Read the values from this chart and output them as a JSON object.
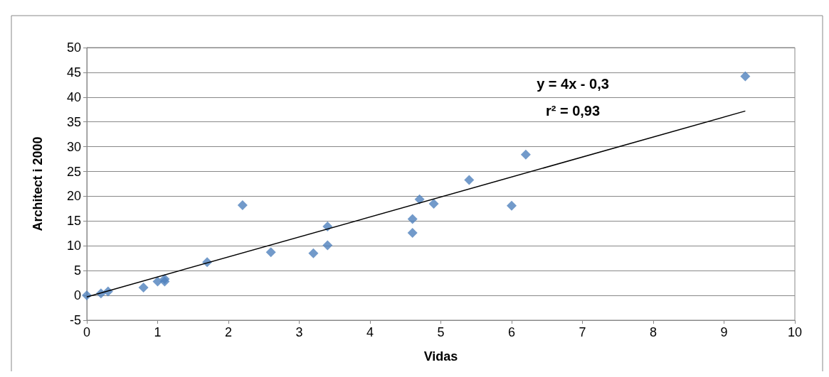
{
  "chart_data": {
    "type": "scatter",
    "xlabel": "Vidas",
    "ylabel": "Architect i 2000",
    "xlim": [
      0,
      10
    ],
    "xticks": [
      0,
      1,
      2,
      3,
      4,
      5,
      6,
      7,
      8,
      9,
      10
    ],
    "ylim": [
      -5,
      50
    ],
    "yticks": [
      -5,
      0,
      5,
      10,
      15,
      20,
      25,
      30,
      35,
      40,
      45,
      50
    ],
    "grid": "y",
    "marker": "diamond",
    "annotations": [
      "y = 4x - 0,3",
      "r² = 0,93"
    ],
    "series": [
      {
        "color": "#4f81bd",
        "x": [
          0,
          0.2,
          0.3,
          0.8,
          1.0,
          1.1,
          1.1,
          1.7,
          2.2,
          2.6,
          3.2,
          3.4,
          3.4,
          4.6,
          4.6,
          4.7,
          4.9,
          5.4,
          6.0,
          6.2,
          9.3
        ],
        "values": [
          0,
          0.4,
          0.8,
          1.6,
          2.8,
          2.8,
          3.3,
          6.7,
          18.2,
          8.7,
          8.5,
          13.9,
          10.1,
          15.4,
          12.6,
          19.4,
          18.5,
          23.3,
          18.1,
          28.4,
          44.2
        ]
      },
      {
        "type": "line",
        "color": "#000000",
        "marker": "none",
        "line_style": "solid",
        "x": [
          0,
          9.3
        ],
        "values": [
          -0.3,
          37.2
        ]
      }
    ]
  }
}
